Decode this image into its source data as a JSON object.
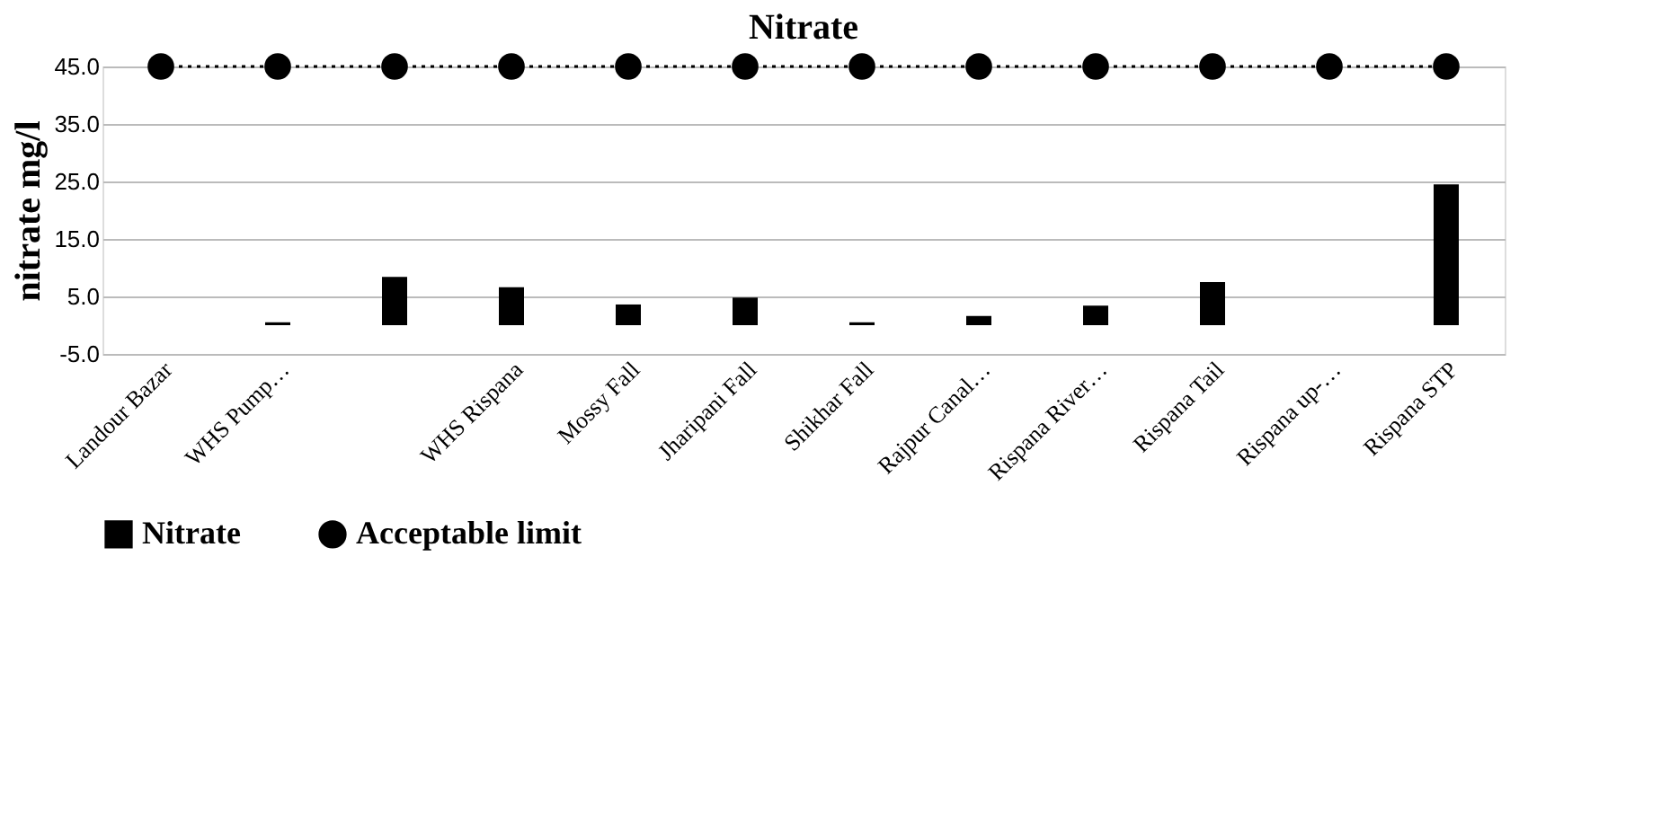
{
  "chart_data": {
    "type": "bar",
    "title": "Nitrate",
    "ylabel": "nitrate mg/l",
    "categories": [
      "Landour Bazar",
      "WHS Pump…",
      null,
      "WHS Rispana",
      "Mossy Fall",
      "Jharipani Fall",
      "Shikhar Fall",
      "Rajpur Canal…",
      "Rispana River…",
      "Rispana Tail",
      "Rispana up-…",
      "Rispana STP"
    ],
    "series": [
      {
        "name": "Nitrate",
        "color": "#000000",
        "values": [
          0,
          0.5,
          8.4,
          6.6,
          3.6,
          4.8,
          0.5,
          1.6,
          3.4,
          7.5,
          0,
          24.5
        ]
      },
      {
        "name": "Acceptable limit",
        "type": "line",
        "color": "#000000",
        "marker": "circle",
        "line_style": "dotted",
        "values": [
          45,
          45,
          45,
          45,
          45,
          45,
          45,
          45,
          45,
          45,
          45,
          45
        ]
      }
    ],
    "ylim": [
      -5,
      45
    ],
    "yticks": [
      {
        "value": -5,
        "label": "-5.0"
      },
      {
        "value": 5,
        "label": "5.0"
      },
      {
        "value": 15,
        "label": "15.0"
      },
      {
        "value": 25,
        "label": "25.0"
      },
      {
        "value": 35,
        "label": "35.0"
      },
      {
        "value": 45,
        "label": "45.0"
      }
    ],
    "grid": "y",
    "legend": "bottom"
  }
}
